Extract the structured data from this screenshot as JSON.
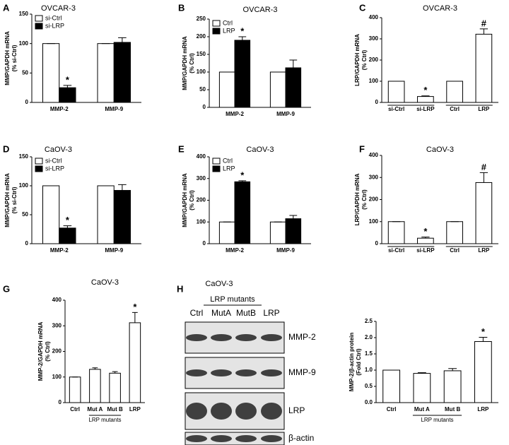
{
  "chart_data": [
    {
      "type": "bar",
      "panel": "A",
      "title": "OVCAR-3",
      "ylabel": [
        "MMP/GAPDH mRNA",
        "(% si-Ctrl)"
      ],
      "categories": [
        "MMP-2",
        "MMP-9"
      ],
      "series": [
        {
          "name": "si-Ctrl",
          "color": "#ffffff",
          "values": [
            100,
            100
          ],
          "errors": [
            0,
            0
          ],
          "annotations": [
            null,
            null
          ]
        },
        {
          "name": "si-LRP",
          "color": "#000000",
          "values": [
            25,
            102
          ],
          "errors": [
            4,
            8
          ],
          "annotations": [
            "*",
            null
          ]
        }
      ],
      "ylim": [
        0,
        150
      ],
      "yticks": [
        0,
        50,
        100,
        150
      ],
      "legend": "top-left"
    },
    {
      "type": "bar",
      "panel": "B",
      "title": "OVCAR-3",
      "ylabel": [
        "MMP/GAPDH mRNA",
        "(% Ctrl)"
      ],
      "categories": [
        "MMP-2",
        "MMP-9"
      ],
      "series": [
        {
          "name": "Ctrl",
          "color": "#ffffff",
          "values": [
            100,
            100
          ],
          "errors": [
            0,
            0
          ],
          "annotations": [
            null,
            null
          ]
        },
        {
          "name": "LRP",
          "color": "#000000",
          "values": [
            190,
            112
          ],
          "errors": [
            10,
            22
          ],
          "annotations": [
            "*",
            null
          ]
        }
      ],
      "ylim": [
        0,
        250
      ],
      "yticks": [
        0,
        50,
        100,
        150,
        200,
        250
      ],
      "legend": "top-left"
    },
    {
      "type": "bar",
      "panel": "C",
      "title": "OVCAR-3",
      "ylabel": [
        "LRP/GAPDH mRNA",
        "(% Ctrl)"
      ],
      "categories": [
        "si-Ctrl",
        "si-LRP",
        "Ctrl",
        "LRP"
      ],
      "values": [
        100,
        28,
        100,
        322
      ],
      "errors": [
        0,
        3,
        0,
        25
      ],
      "annotations": [
        null,
        "*",
        null,
        "#"
      ],
      "color": "#ffffff",
      "ylim": [
        0,
        400
      ],
      "yticks": [
        0,
        100,
        200,
        300,
        400
      ]
    },
    {
      "type": "bar",
      "panel": "D",
      "title": "CaOV-3",
      "ylabel": [
        "MMP/GAPDH mRNA",
        "(% si-Ctrl)"
      ],
      "categories": [
        "MMP-2",
        "MMP-9"
      ],
      "series": [
        {
          "name": "si-Ctrl",
          "color": "#ffffff",
          "values": [
            100,
            100
          ],
          "errors": [
            0,
            0
          ],
          "annotations": [
            null,
            null
          ]
        },
        {
          "name": "si-LRP",
          "color": "#000000",
          "values": [
            27,
            92
          ],
          "errors": [
            4,
            10
          ],
          "annotations": [
            "*",
            null
          ]
        }
      ],
      "ylim": [
        0,
        150
      ],
      "yticks": [
        0,
        50,
        100,
        150
      ],
      "legend": "top-left"
    },
    {
      "type": "bar",
      "panel": "E",
      "title": "CaOV-3",
      "ylabel": [
        "MMP/GAPDH mRNA",
        "(% Ctrl)"
      ],
      "categories": [
        "MMP-2",
        "MMP-9"
      ],
      "series": [
        {
          "name": "Ctrl",
          "color": "#ffffff",
          "values": [
            100,
            100
          ],
          "errors": [
            0,
            0
          ],
          "annotations": [
            null,
            null
          ]
        },
        {
          "name": "LRP",
          "color": "#000000",
          "values": [
            285,
            115
          ],
          "errors": [
            5,
            15
          ],
          "annotations": [
            "*",
            null
          ]
        }
      ],
      "ylim": [
        0,
        400
      ],
      "yticks": [
        0,
        100,
        200,
        300,
        400
      ],
      "legend": "top-left"
    },
    {
      "type": "bar",
      "panel": "F",
      "title": "CaOV-3",
      "ylabel": [
        "LRP/GAPDH mRNA",
        "(% Ctrl)"
      ],
      "categories": [
        "si-Ctrl",
        "si-LRP",
        "Ctrl",
        "LRP"
      ],
      "values": [
        100,
        25,
        100,
        277
      ],
      "errors": [
        0,
        5,
        0,
        45
      ],
      "annotations": [
        null,
        "*",
        null,
        "#"
      ],
      "color": "#ffffff",
      "ylim": [
        0,
        400
      ],
      "yticks": [
        0,
        100,
        200,
        300,
        400
      ]
    },
    {
      "type": "bar",
      "panel": "G",
      "title": "CaOV-3",
      "ylabel": [
        "MMP-2/GAPDH mRNA",
        "(% Ctrl)"
      ],
      "categories": [
        "Ctrl",
        "Mut A",
        "Mut B",
        "LRP"
      ],
      "values": [
        100,
        130,
        115,
        312
      ],
      "errors": [
        0,
        6,
        6,
        40
      ],
      "annotations": [
        null,
        null,
        null,
        "*"
      ],
      "color": "#ffffff",
      "group_label": "LRP mutants",
      "ylim": [
        0,
        400
      ],
      "yticks": [
        0,
        100,
        200,
        300,
        400
      ]
    },
    {
      "type": "bar",
      "ylabel": [
        "MMP-2/β-actin protein",
        "(Fold Ctrl)"
      ],
      "categories": [
        "Ctrl",
        "Mut A",
        "Mut B",
        "LRP"
      ],
      "values": [
        1.0,
        0.9,
        0.98,
        1.88
      ],
      "errors": [
        0,
        0.02,
        0.07,
        0.13
      ],
      "annotations": [
        null,
        null,
        null,
        "*"
      ],
      "color": "#ffffff",
      "group_label": "LRP mutants",
      "ylim": [
        0,
        2.5
      ],
      "yticks": [
        {
          "value": 0,
          "label": "0.0"
        },
        0.5,
        {
          "value": 1,
          "label": "1.0"
        },
        1.5,
        {
          "value": 2,
          "label": "2.0"
        },
        2.5
      ]
    }
  ],
  "blot": {
    "panel": "H",
    "title": "CaOV-3",
    "group_label": "LRP mutants",
    "lanes": [
      "Ctrl",
      "MutA",
      "MutB",
      "LRP"
    ],
    "bands": [
      "MMP-2",
      "MMP-9",
      "LRP",
      "β-actin"
    ]
  }
}
